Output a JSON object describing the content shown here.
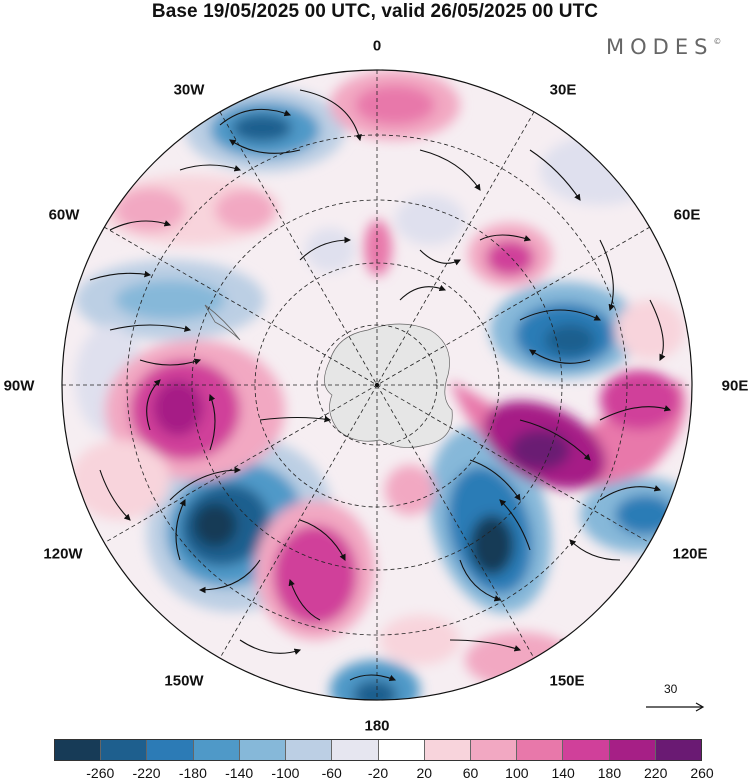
{
  "header": {
    "title": "Base 19/05/2025 00 UTC, valid 26/05/2025 00 UTC"
  },
  "brand": {
    "name": "MODES",
    "mark": "©"
  },
  "map": {
    "projection": "south polar stereographic",
    "longitude_labels": {
      "lon_0": "0",
      "lon_30e": "30E",
      "lon_60e": "60E",
      "lon_90e": "90E",
      "lon_120e": "120E",
      "lon_150e": "150E",
      "lon_180": "180",
      "lon_150w": "150W",
      "lon_120w": "120W",
      "lon_90w": "90W",
      "lon_60w": "60W",
      "lon_30w": "30W"
    },
    "reference_vector": "30",
    "colors": {
      "land": "#e6e6e6",
      "graticule": "#222222",
      "coast": "#666666"
    }
  },
  "colorbar": {
    "ticks": [
      "-260",
      "-220",
      "-180",
      "-140",
      "-100",
      "-60",
      "-20",
      "20",
      "60",
      "100",
      "140",
      "180",
      "220",
      "260"
    ],
    "colors": [
      "#173b57",
      "#1e5f8e",
      "#2c7bb6",
      "#4f99c8",
      "#86b8d9",
      "#bccfe4",
      "#e6e6f0",
      "#ffffff",
      "#f8d4dc",
      "#f2a8c2",
      "#e878aa",
      "#d0409a",
      "#a61f86",
      "#6a1a73"
    ]
  }
}
